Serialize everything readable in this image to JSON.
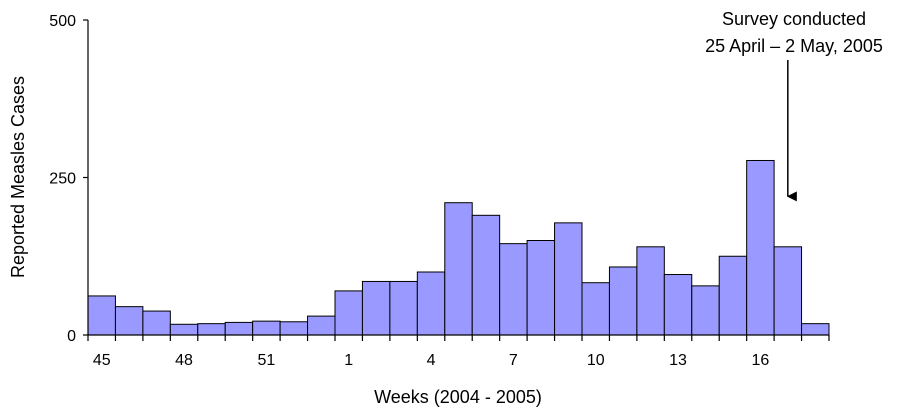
{
  "chart_data": {
    "type": "bar",
    "title": "",
    "xlabel": "Weeks (2004 - 2005)",
    "ylabel": "Reported Measles Cases",
    "ylim": [
      0,
      500
    ],
    "yticks": [
      0,
      250,
      500
    ],
    "grid": false,
    "bar_color": "#9999ff",
    "bar_edge_color": "#000000",
    "categories": [
      "45",
      "46",
      "47",
      "48",
      "49",
      "50",
      "51",
      "52",
      "53",
      "1",
      "2",
      "3",
      "4",
      "5",
      "6",
      "7",
      "8",
      "9",
      "10",
      "11",
      "12",
      "13",
      "14",
      "15",
      "16",
      "17",
      "18"
    ],
    "xtick_labels": [
      "45",
      "48",
      "51",
      "1",
      "4",
      "7",
      "10",
      "13",
      "16"
    ],
    "values": [
      62,
      45,
      38,
      17,
      18,
      20,
      22,
      21,
      30,
      70,
      85,
      85,
      100,
      210,
      190,
      145,
      150,
      178,
      83,
      108,
      140,
      96,
      78,
      125,
      277,
      140,
      18
    ],
    "annotation": {
      "line1": "Survey conducted",
      "line2": "25 April – 2 May, 2005",
      "arrow_at_category": "17",
      "arrow_tip_value": 220
    }
  }
}
